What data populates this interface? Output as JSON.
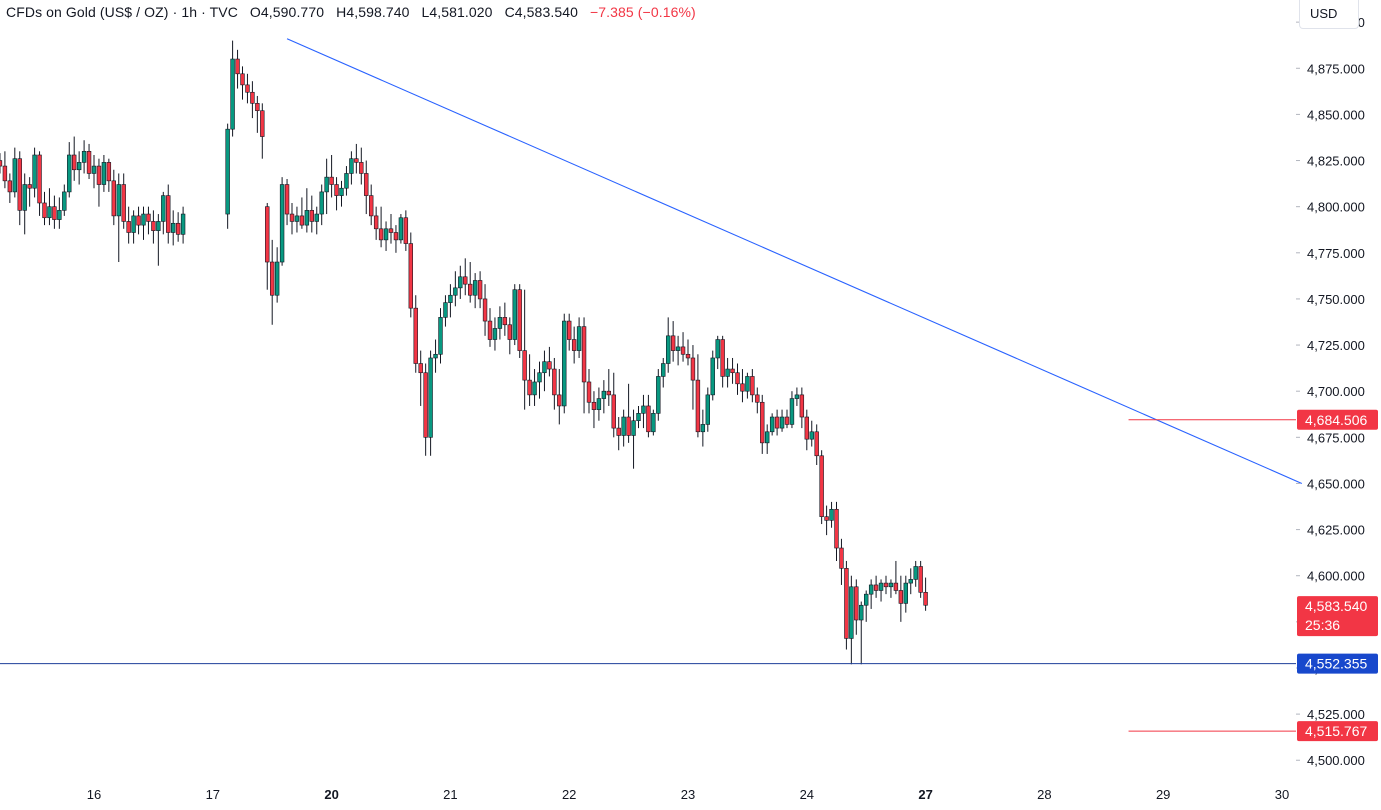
{
  "legend": {
    "symbol": "CFDs on Gold (US$ / OZ)",
    "interval": "1h",
    "source": "TVC",
    "open_label": "O",
    "open": "4,590.770",
    "high_label": "H",
    "high": "4,598.740",
    "low_label": "L",
    "low": "4,581.020",
    "close_label": "C",
    "close": "4,583.540",
    "change": "−7.385 (−0.16%)"
  },
  "currency_button": "USD",
  "colors": {
    "up": "#089981",
    "down": "#f23645",
    "trendline": "#2962ff",
    "support": "#1e3f99",
    "axis_text": "#131722"
  },
  "chart_data": {
    "type": "candlestick",
    "ylim": [
      4492,
      4912
    ],
    "y_ticks": [
      "4,900.000",
      "4,875.000",
      "4,850.000",
      "4,825.000",
      "4,800.000",
      "4,775.000",
      "4,750.000",
      "4,725.000",
      "4,700.000",
      "4,675.000",
      "4,650.000",
      "4,625.000",
      "4,600.000",
      "4,575.000",
      "4,550.000",
      "4,525.000",
      "4,500.000"
    ],
    "x_ticks": [
      {
        "label": "16",
        "pos": 0,
        "bold": false
      },
      {
        "label": "17",
        "pos": 24,
        "bold": false
      },
      {
        "label": "20",
        "pos": 48,
        "bold": true
      },
      {
        "label": "21",
        "pos": 72,
        "bold": false
      },
      {
        "label": "22",
        "pos": 96,
        "bold": false
      },
      {
        "label": "23",
        "pos": 120,
        "bold": false
      },
      {
        "label": "24",
        "pos": 144,
        "bold": false
      },
      {
        "label": "27",
        "pos": 168,
        "bold": true
      },
      {
        "label": "28",
        "pos": 192,
        "bold": false
      },
      {
        "label": "29",
        "pos": 216,
        "bold": false
      },
      {
        "label": "30",
        "pos": 240,
        "bold": false
      }
    ],
    "candles_ohlc": [
      [
        4825,
        4829,
        4818,
        4822
      ],
      [
        4822,
        4830,
        4810,
        4814
      ],
      [
        4814,
        4818,
        4802,
        4808
      ],
      [
        4808,
        4832,
        4805,
        4826
      ],
      [
        4826,
        4830,
        4790,
        4798
      ],
      [
        4798,
        4818,
        4785,
        4812
      ],
      [
        4812,
        4816,
        4800,
        4810
      ],
      [
        4810,
        4832,
        4805,
        4828
      ],
      [
        4828,
        4830,
        4795,
        4802
      ],
      [
        4802,
        4808,
        4790,
        4794
      ],
      [
        4794,
        4810,
        4790,
        4800
      ],
      [
        4800,
        4806,
        4788,
        4793
      ],
      [
        4793,
        4805,
        4788,
        4798
      ],
      [
        4798,
        4812,
        4795,
        4808
      ],
      [
        4808,
        4835,
        4805,
        4828
      ],
      [
        4828,
        4838,
        4814,
        4820
      ],
      [
        4820,
        4830,
        4812,
        4824
      ],
      [
        4824,
        4836,
        4818,
        4830
      ],
      [
        4830,
        4834,
        4815,
        4818
      ],
      [
        4818,
        4828,
        4810,
        4822
      ],
      [
        4822,
        4826,
        4800,
        4812
      ],
      [
        4812,
        4828,
        4808,
        4824
      ],
      [
        4824,
        4826,
        4808,
        4814
      ],
      [
        4814,
        4820,
        4790,
        4795
      ],
      [
        4795,
        4818,
        4770,
        4812
      ],
      [
        4812,
        4818,
        4788,
        4792
      ],
      [
        4792,
        4800,
        4780,
        4786
      ],
      [
        4786,
        4798,
        4780,
        4795
      ],
      [
        4795,
        4800,
        4785,
        4790
      ],
      [
        4790,
        4800,
        4782,
        4796
      ],
      [
        4796,
        4800,
        4785,
        4792
      ],
      [
        4792,
        4798,
        4780,
        4787
      ],
      [
        4787,
        4796,
        4768,
        4792
      ],
      [
        4792,
        4808,
        4785,
        4806
      ],
      [
        4806,
        4812,
        4780,
        4786
      ],
      [
        4786,
        4798,
        4779,
        4791
      ],
      [
        4791,
        4797,
        4781,
        4785
      ],
      [
        4785,
        4800,
        4780,
        4796
      ],
      [
        4796,
        4845,
        4788,
        4842
      ],
      [
        4842,
        4890,
        4838,
        4880
      ],
      [
        4880,
        4885,
        4864,
        4872
      ],
      [
        4872,
        4876,
        4858,
        4866
      ],
      [
        4866,
        4872,
        4856,
        4862
      ],
      [
        4862,
        4868,
        4848,
        4856
      ],
      [
        4856,
        4860,
        4840,
        4852
      ],
      [
        4852,
        4856,
        4826,
        4838
      ],
      [
        4800,
        4802,
        4755,
        4770
      ],
      [
        4770,
        4782,
        4736,
        4752
      ],
      [
        4752,
        4778,
        4748,
        4770
      ],
      [
        4770,
        4816,
        4768,
        4812
      ],
      [
        4812,
        4815,
        4790,
        4796
      ],
      [
        4796,
        4802,
        4785,
        4792
      ],
      [
        4792,
        4800,
        4786,
        4795
      ],
      [
        4795,
        4805,
        4788,
        4790
      ],
      [
        4790,
        4810,
        4786,
        4798
      ],
      [
        4798,
        4806,
        4786,
        4792
      ],
      [
        4792,
        4800,
        4785,
        4796
      ],
      [
        4796,
        4812,
        4790,
        4808
      ],
      [
        4808,
        4826,
        4796,
        4816
      ],
      [
        4816,
        4828,
        4805,
        4812
      ],
      [
        4812,
        4816,
        4798,
        4806
      ],
      [
        4806,
        4814,
        4800,
        4810
      ],
      [
        4810,
        4822,
        4806,
        4818
      ],
      [
        4818,
        4830,
        4812,
        4826
      ],
      [
        4826,
        4834,
        4818,
        4824
      ],
      [
        4824,
        4832,
        4812,
        4818
      ],
      [
        4818,
        4825,
        4796,
        4806
      ],
      [
        4806,
        4812,
        4790,
        4795
      ],
      [
        4795,
        4800,
        4782,
        4788
      ],
      [
        4788,
        4800,
        4778,
        4782
      ],
      [
        4782,
        4792,
        4776,
        4788
      ],
      [
        4788,
        4796,
        4780,
        4786
      ],
      [
        4786,
        4790,
        4775,
        4782
      ],
      [
        4782,
        4796,
        4780,
        4794
      ],
      [
        4794,
        4798,
        4776,
        4780
      ],
      [
        4780,
        4786,
        4740,
        4745
      ],
      [
        4745,
        4752,
        4710,
        4715
      ],
      [
        4715,
        4722,
        4692,
        4710
      ],
      [
        4710,
        4715,
        4665,
        4675
      ],
      [
        4675,
        4722,
        4665,
        4718
      ],
      [
        4718,
        4728,
        4710,
        4720
      ],
      [
        4720,
        4745,
        4715,
        4740
      ],
      [
        4740,
        4752,
        4735,
        4748
      ],
      [
        4748,
        4758,
        4740,
        4752
      ],
      [
        4752,
        4765,
        4746,
        4756
      ],
      [
        4756,
        4768,
        4750,
        4762
      ],
      [
        4762,
        4772,
        4752,
        4758
      ],
      [
        4758,
        4770,
        4748,
        4752
      ],
      [
        4752,
        4764,
        4745,
        4760
      ],
      [
        4760,
        4765,
        4745,
        4750
      ],
      [
        4750,
        4758,
        4730,
        4738
      ],
      [
        4738,
        4745,
        4724,
        4728
      ],
      [
        4728,
        4740,
        4722,
        4734
      ],
      [
        4734,
        4746,
        4728,
        4740
      ],
      [
        4740,
        4748,
        4730,
        4736
      ],
      [
        4736,
        4740,
        4720,
        4728
      ],
      [
        4728,
        4758,
        4725,
        4755
      ],
      [
        4755,
        4758,
        4718,
        4722
      ],
      [
        4722,
        4755,
        4690,
        4706
      ],
      [
        4706,
        4720,
        4692,
        4698
      ],
      [
        4698,
        4712,
        4692,
        4705
      ],
      [
        4705,
        4716,
        4696,
        4710
      ],
      [
        4710,
        4722,
        4700,
        4716
      ],
      [
        4716,
        4724,
        4708,
        4712
      ],
      [
        4712,
        4718,
        4690,
        4698
      ],
      [
        4698,
        4712,
        4682,
        4692
      ],
      [
        4692,
        4742,
        4688,
        4738
      ],
      [
        4738,
        4742,
        4722,
        4728
      ],
      [
        4728,
        4735,
        4715,
        4722
      ],
      [
        4722,
        4740,
        4718,
        4735
      ],
      [
        4735,
        4740,
        4688,
        4705
      ],
      [
        4705,
        4712,
        4688,
        4694
      ],
      [
        4694,
        4700,
        4680,
        4690
      ],
      [
        4690,
        4702,
        4684,
        4696
      ],
      [
        4696,
        4706,
        4688,
        4700
      ],
      [
        4700,
        4712,
        4692,
        4698
      ],
      [
        4698,
        4710,
        4675,
        4680
      ],
      [
        4680,
        4686,
        4668,
        4676
      ],
      [
        4676,
        4690,
        4670,
        4686
      ],
      [
        4686,
        4704,
        4672,
        4676
      ],
      [
        4676,
        4690,
        4658,
        4684
      ],
      [
        4684,
        4692,
        4680,
        4688
      ],
      [
        4688,
        4698,
        4680,
        4692
      ],
      [
        4692,
        4698,
        4675,
        4678
      ],
      [
        4678,
        4690,
        4676,
        4688
      ],
      [
        4688,
        4712,
        4684,
        4708
      ],
      [
        4708,
        4718,
        4702,
        4715
      ],
      [
        4715,
        4740,
        4710,
        4730
      ],
      [
        4730,
        4738,
        4716,
        4722
      ],
      [
        4722,
        4730,
        4714,
        4724
      ],
      [
        4724,
        4732,
        4716,
        4720
      ],
      [
        4720,
        4728,
        4714,
        4718
      ],
      [
        4718,
        4725,
        4690,
        4706
      ],
      [
        4706,
        4720,
        4675,
        4678
      ],
      [
        4678,
        4690,
        4670,
        4682
      ],
      [
        4682,
        4702,
        4678,
        4698
      ],
      [
        4698,
        4722,
        4695,
        4718
      ],
      [
        4718,
        4730,
        4712,
        4728
      ],
      [
        4728,
        4730,
        4702,
        4708
      ],
      [
        4708,
        4718,
        4702,
        4712
      ],
      [
        4712,
        4718,
        4704,
        4710
      ],
      [
        4710,
        4715,
        4698,
        4704
      ],
      [
        4704,
        4712,
        4694,
        4700
      ],
      [
        4700,
        4710,
        4696,
        4708
      ],
      [
        4708,
        4712,
        4694,
        4698
      ],
      [
        4698,
        4702,
        4688,
        4694
      ],
      [
        4694,
        4698,
        4666,
        4672
      ],
      [
        4672,
        4682,
        4666,
        4678
      ],
      [
        4678,
        4688,
        4676,
        4686
      ],
      [
        4686,
        4690,
        4676,
        4680
      ],
      [
        4680,
        4690,
        4678,
        4686
      ],
      [
        4686,
        4690,
        4680,
        4682
      ],
      [
        4682,
        4700,
        4680,
        4696
      ],
      [
        4696,
        4702,
        4692,
        4698
      ],
      [
        4698,
        4702,
        4680,
        4686
      ],
      [
        4686,
        4690,
        4668,
        4674
      ],
      [
        4674,
        4684,
        4670,
        4678
      ],
      [
        4678,
        4682,
        4660,
        4665
      ],
      [
        4665,
        4668,
        4628,
        4632
      ],
      [
        4632,
        4638,
        4622,
        4630
      ],
      [
        4630,
        4640,
        4626,
        4636
      ],
      [
        4636,
        4640,
        4608,
        4615
      ],
      [
        4615,
        4620,
        4595,
        4604
      ],
      [
        4604,
        4608,
        4560,
        4566
      ],
      [
        4566,
        4600,
        4552,
        4594
      ],
      [
        4594,
        4598,
        4568,
        4576
      ],
      [
        4576,
        4586,
        4552,
        4584
      ],
      [
        4584,
        4592,
        4575,
        4590
      ],
      [
        4590,
        4598,
        4582,
        4595
      ],
      [
        4595,
        4600,
        4588,
        4592
      ],
      [
        4592,
        4598,
        4586,
        4596
      ],
      [
        4596,
        4600,
        4590,
        4594
      ],
      [
        4594,
        4598,
        4588,
        4596
      ],
      [
        4596,
        4608,
        4590,
        4592
      ],
      [
        4592,
        4600,
        4575,
        4585
      ],
      [
        4585,
        4600,
        4580,
        4596
      ],
      [
        4596,
        4604,
        4590,
        4598
      ],
      [
        4598,
        4608,
        4594,
        4605
      ],
      [
        4605,
        4608,
        4588,
        4591
      ],
      [
        4591,
        4599,
        4581,
        4584
      ]
    ],
    "gap_after_index": 37,
    "gap_candles": 8,
    "trendline": {
      "from": {
        "pos": 39,
        "price": 4891
      },
      "to": {
        "pos": 244,
        "price": 4650
      }
    },
    "support_level": {
      "price": 4552.355,
      "label": "4,552.355"
    },
    "resistance_marker": {
      "price": 4684.506,
      "label": "4,684.506",
      "start_pos": 209
    },
    "target_marker": {
      "price": 4515.767,
      "label": "4,515.767",
      "start_pos": 209
    },
    "last_price": {
      "price": 4583.54,
      "label": "4,583.540",
      "countdown": "25:36"
    }
  }
}
